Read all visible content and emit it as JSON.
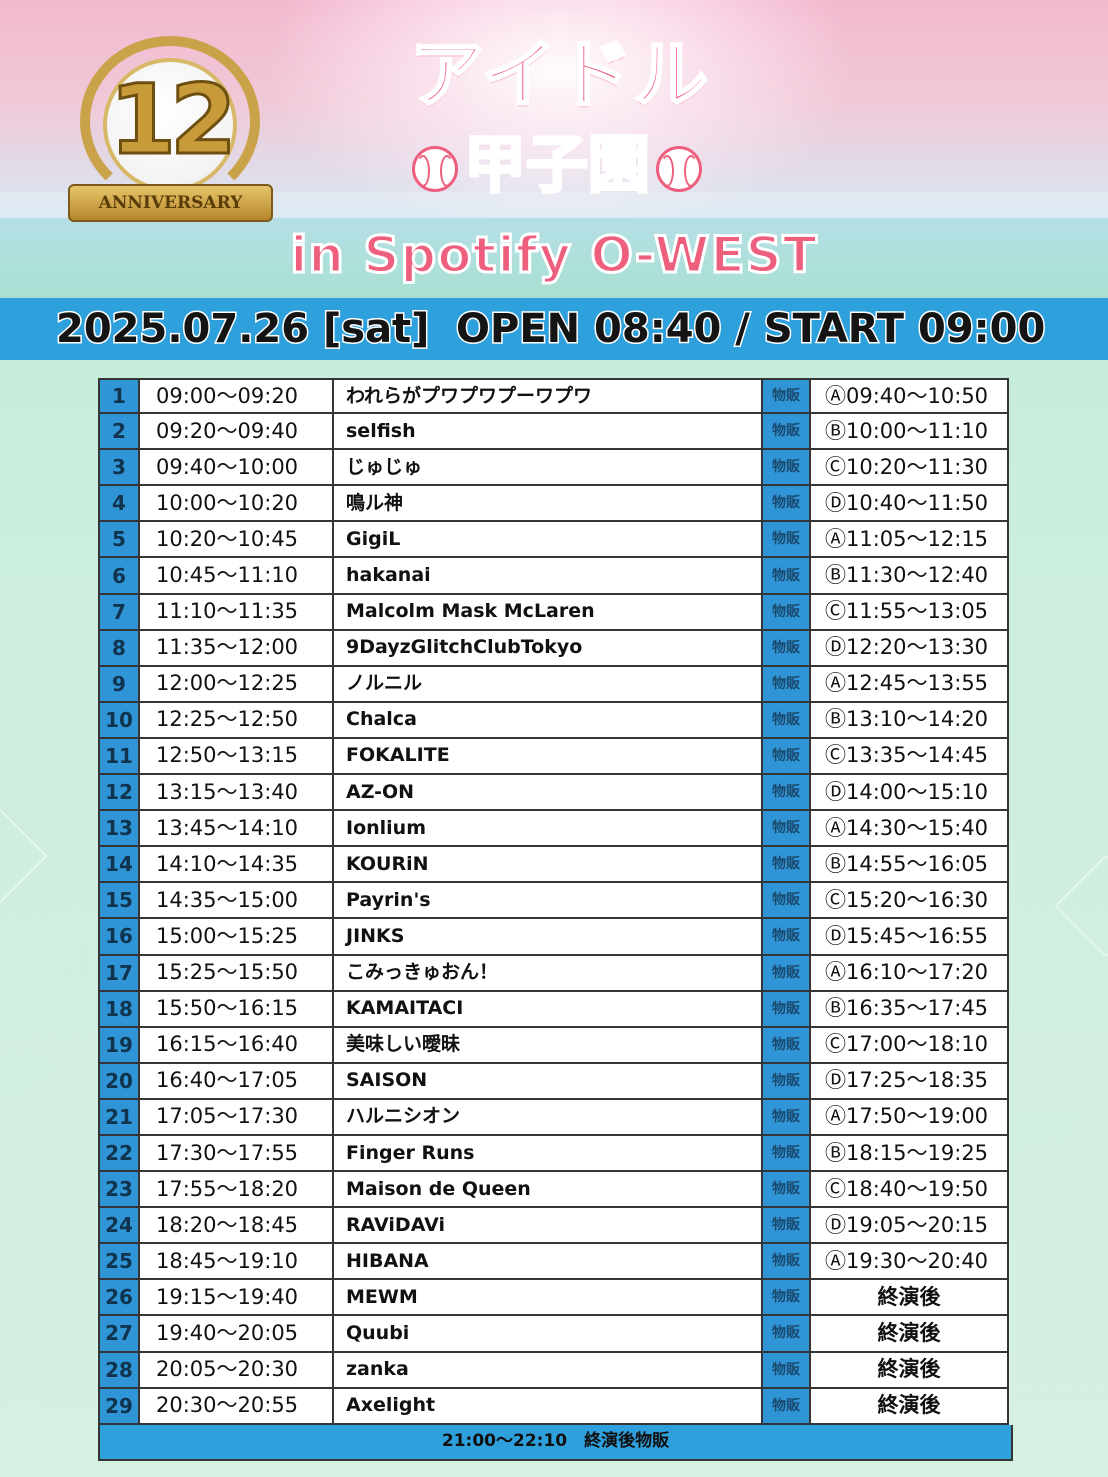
{
  "header": {
    "anniversary_number": "12",
    "anniversary_label": "ANNIVERSARY",
    "title_line1": "アイドル",
    "title_line2": "甲子園",
    "title_line3": "in Spotify O-WEST"
  },
  "event": {
    "date": "2025.07.26 [sat]",
    "times": "OPEN 08:40 / START 09:00"
  },
  "colors": {
    "accent_blue": "#2ea0dc",
    "title_pink": "#ee5f7e"
  },
  "merch_label": "物販",
  "rows": [
    {
      "num": "1",
      "time": "09:00～09:20",
      "artist": "われらがプワプワプーワプワ",
      "merch": "Ⓐ09:40～10:50"
    },
    {
      "num": "2",
      "time": "09:20～09:40",
      "artist": "selfish",
      "merch": "Ⓑ10:00～11:10"
    },
    {
      "num": "3",
      "time": "09:40～10:00",
      "artist": "じゅじゅ",
      "merch": "Ⓒ10:20～11:30"
    },
    {
      "num": "4",
      "time": "10:00～10:20",
      "artist": "鳴ル神",
      "merch": "Ⓓ10:40～11:50"
    },
    {
      "num": "5",
      "time": "10:20～10:45",
      "artist": "GigiL",
      "merch": "Ⓐ11:05～12:15"
    },
    {
      "num": "6",
      "time": "10:45～11:10",
      "artist": "hakanai",
      "merch": "Ⓑ11:30～12:40"
    },
    {
      "num": "7",
      "time": "11:10～11:35",
      "artist": "Malcolm Mask McLaren",
      "merch": "Ⓒ11:55～13:05"
    },
    {
      "num": "8",
      "time": "11:35～12:00",
      "artist": "9DayzGlitchClubTokyo",
      "merch": "Ⓓ12:20～13:30"
    },
    {
      "num": "9",
      "time": "12:00～12:25",
      "artist": "ノルニル",
      "merch": "Ⓐ12:45～13:55"
    },
    {
      "num": "10",
      "time": "12:25～12:50",
      "artist": "Chalca",
      "merch": "Ⓑ13:10～14:20"
    },
    {
      "num": "11",
      "time": "12:50～13:15",
      "artist": "FOKALITE",
      "merch": "Ⓒ13:35～14:45"
    },
    {
      "num": "12",
      "time": "13:15～13:40",
      "artist": "AZ-ON",
      "merch": "Ⓓ14:00～15:10"
    },
    {
      "num": "13",
      "time": "13:45～14:10",
      "artist": "Ionlium",
      "merch": "Ⓐ14:30～15:40"
    },
    {
      "num": "14",
      "time": "14:10～14:35",
      "artist": "KOURiN",
      "merch": "Ⓑ14:55～16:05"
    },
    {
      "num": "15",
      "time": "14:35～15:00",
      "artist": "Payrin's",
      "merch": "Ⓒ15:20～16:30"
    },
    {
      "num": "16",
      "time": "15:00～15:25",
      "artist": "JINKS",
      "merch": "Ⓓ15:45～16:55"
    },
    {
      "num": "17",
      "time": "15:25～15:50",
      "artist": "こみっきゅおん！",
      "merch": "Ⓐ16:10～17:20"
    },
    {
      "num": "18",
      "time": "15:50～16:15",
      "artist": "KAMAITACI",
      "merch": "Ⓑ16:35～17:45"
    },
    {
      "num": "19",
      "time": "16:15～16:40",
      "artist": "美味しい曖昧",
      "merch": "Ⓒ17:00～18:10"
    },
    {
      "num": "20",
      "time": "16:40～17:05",
      "artist": "SAISON",
      "merch": "Ⓓ17:25～18:35"
    },
    {
      "num": "21",
      "time": "17:05～17:30",
      "artist": "ハルニシオン",
      "merch": "Ⓐ17:50～19:00"
    },
    {
      "num": "22",
      "time": "17:30～17:55",
      "artist": "Finger Runs",
      "merch": "Ⓑ18:15～19:25"
    },
    {
      "num": "23",
      "time": "17:55～18:20",
      "artist": "Maison de Queen",
      "merch": "Ⓒ18:40～19:50"
    },
    {
      "num": "24",
      "time": "18:20～18:45",
      "artist": "RAViDAVi",
      "merch": "Ⓓ19:05～20:15"
    },
    {
      "num": "25",
      "time": "18:45～19:10",
      "artist": "HIBANA",
      "merch": "Ⓐ19:30～20:40"
    },
    {
      "num": "26",
      "time": "19:15～19:40",
      "artist": "MEWM",
      "merch": "終演後"
    },
    {
      "num": "27",
      "time": "19:40～20:05",
      "artist": "Quubi",
      "merch": "終演後"
    },
    {
      "num": "28",
      "time": "20:05～20:30",
      "artist": "zanka",
      "merch": "終演後"
    },
    {
      "num": "29",
      "time": "20:30～20:55",
      "artist": "Axelight",
      "merch": "終演後"
    }
  ],
  "footer": "21:00～22:10　終演後物販"
}
